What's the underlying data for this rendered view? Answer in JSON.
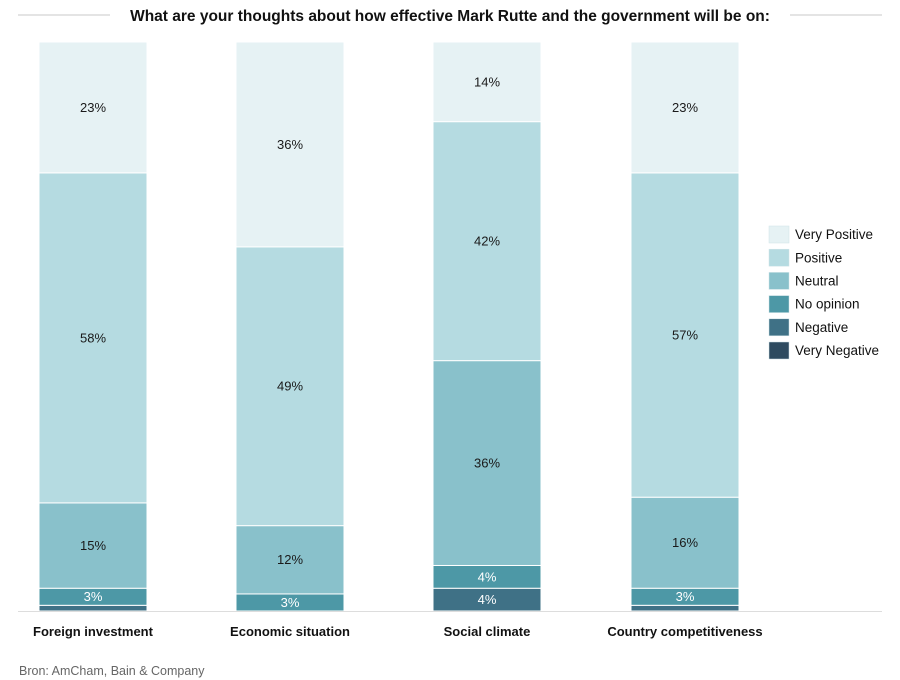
{
  "chart_data": {
    "type": "bar",
    "stacked": true,
    "title": "What are your thoughts about how effective Mark Rutte and the government will be on:",
    "categories": [
      "Foreign investment",
      "Economic situation",
      "Social climate",
      "Country competitiveness"
    ],
    "ylim": [
      0,
      100
    ],
    "series": [
      {
        "name": "Very Negative",
        "color": "#2e4b60",
        "values": [
          0,
          0,
          0,
          0
        ],
        "labels": [
          "",
          "",
          "",
          ""
        ]
      },
      {
        "name": "Negative",
        "color": "#3f7186",
        "values": [
          1,
          0,
          4,
          1
        ],
        "labels": [
          "",
          "",
          "4%",
          ""
        ]
      },
      {
        "name": "No opinion",
        "color": "#4d98a6",
        "values": [
          3,
          3,
          4,
          3
        ],
        "labels": [
          "3%",
          "3%",
          "4%",
          "3%"
        ]
      },
      {
        "name": "Neutral",
        "color": "#89c1cb",
        "values": [
          15,
          12,
          36,
          16
        ],
        "labels": [
          "15%",
          "12%",
          "36%",
          "16%"
        ]
      },
      {
        "name": "Positive",
        "color": "#b5dbe1",
        "values": [
          58,
          49,
          42,
          57
        ],
        "labels": [
          "58%",
          "49%",
          "42%",
          "57%"
        ]
      },
      {
        "name": "Very Positive",
        "color": "#e6f2f4",
        "values": [
          23,
          36,
          14,
          23
        ],
        "labels": [
          "23%",
          "36%",
          "14%",
          "23%"
        ]
      }
    ],
    "legend_order": [
      "Very Positive",
      "Positive",
      "Neutral",
      "No opinion",
      "Negative",
      "Very Negative"
    ],
    "legend_position": "right",
    "source": "Bron: AmCham, Bain & Company"
  }
}
